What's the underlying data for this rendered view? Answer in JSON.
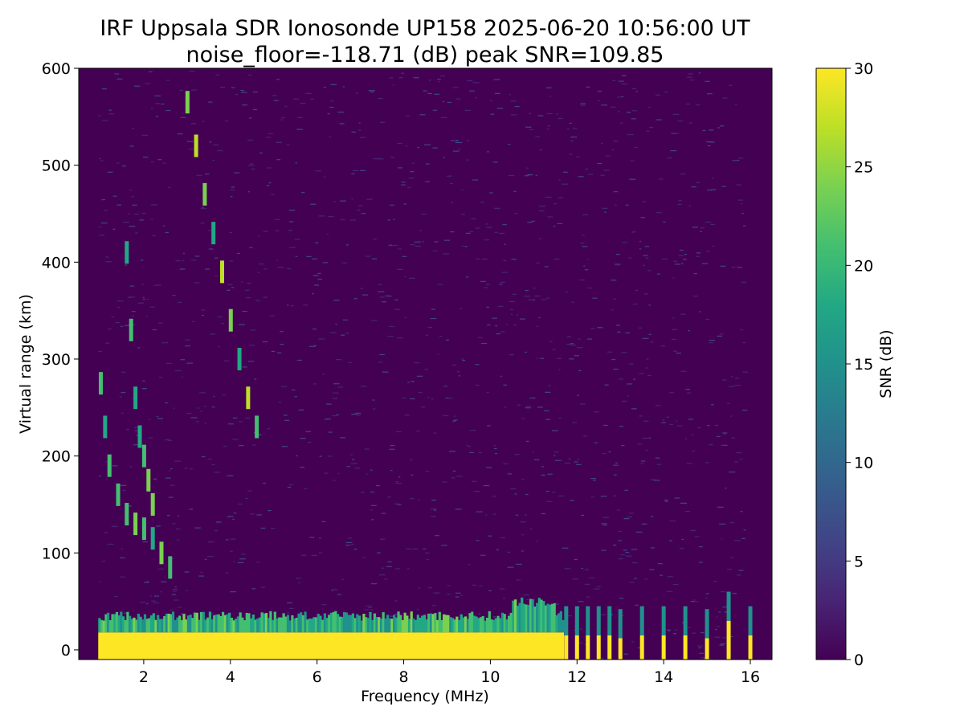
{
  "chart_data": {
    "type": "heatmap",
    "title": "IRF Uppsala SDR Ionosonde UP158 2025-06-20 10:56:00  UT",
    "subtitle": "noise_floor=-118.71 (dB) peak SNR=109.85",
    "xlabel": "Frequency (MHz)",
    "ylabel": "Virtual range (km)",
    "xlim": [
      0.5,
      16.5
    ],
    "ylim": [
      -10,
      600
    ],
    "xticks": [
      2,
      4,
      6,
      8,
      10,
      12,
      14,
      16
    ],
    "yticks": [
      0,
      100,
      200,
      300,
      400,
      500,
      600
    ],
    "grid": false,
    "colorbar": {
      "label": "SNR (dB)",
      "range": [
        0,
        30
      ],
      "ticks": [
        0,
        5,
        10,
        15,
        20,
        25,
        30
      ],
      "colormap": "viridis"
    },
    "colors": {
      "low": "#440154",
      "mid": "#21918c",
      "high": "#fde725"
    },
    "background_noise_band": {
      "freq_range": [
        0.95,
        11.7
      ],
      "range_km": [
        -10,
        30
      ]
    },
    "tone_lines_mhz": [
      11.75,
      12.0,
      12.25,
      12.5,
      12.75,
      13.0,
      13.5,
      14.0,
      14.5,
      15.0,
      15.5,
      16.0
    ],
    "tone_heights_km": [
      15,
      15,
      15,
      15,
      15,
      12,
      15,
      15,
      15,
      12,
      30,
      15
    ],
    "echo_traces": [
      {
        "freq_mhz": [
          1.0,
          1.1,
          1.2,
          1.4,
          1.6,
          1.8,
          2.0,
          2.2,
          2.4,
          2.6
        ],
        "range_km": [
          275,
          230,
          190,
          160,
          140,
          130,
          125,
          115,
          100,
          85
        ]
      },
      {
        "freq_mhz": [
          1.6,
          1.7,
          1.8,
          1.9,
          2.0,
          2.1,
          2.2
        ],
        "range_km": [
          410,
          330,
          260,
          220,
          200,
          175,
          150
        ]
      },
      {
        "freq_mhz": [
          3.0,
          3.2,
          3.4,
          3.6,
          3.8,
          4.0,
          4.2,
          4.4,
          4.6
        ],
        "range_km": [
          565,
          520,
          470,
          430,
          390,
          340,
          300,
          260,
          230
        ]
      }
    ]
  }
}
